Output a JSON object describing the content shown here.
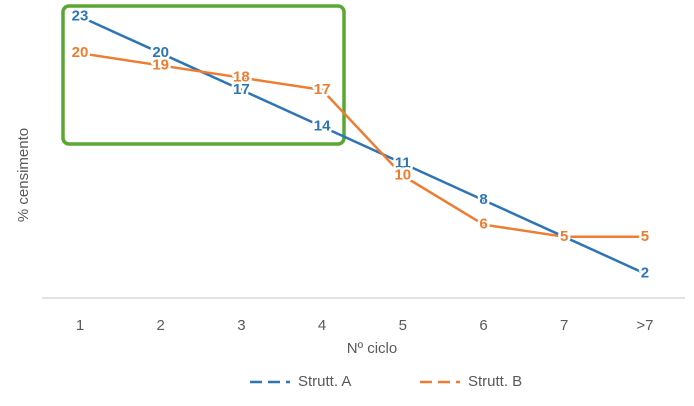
{
  "chart_data": {
    "type": "line",
    "x_label": "Nº ciclo",
    "y_label": "% censimento",
    "categories": [
      "1",
      "2",
      "3",
      "4",
      "5",
      "6",
      "7",
      ">7"
    ],
    "series": [
      {
        "name": "Strutt. A",
        "color": "#2e75b6",
        "values": [
          23,
          20,
          17,
          14,
          11,
          8,
          5,
          2
        ]
      },
      {
        "name": "Strutt. B",
        "color": "#ed7d31",
        "values": [
          20,
          19,
          18,
          17,
          10,
          6,
          5,
          5
        ]
      }
    ]
  }
}
